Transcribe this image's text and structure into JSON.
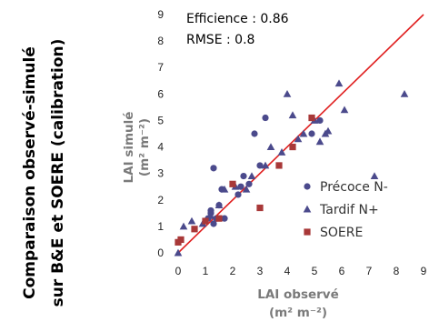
{
  "chart_data": {
    "type": "scatter",
    "side_title_line1": "Comparaison observé-simulé",
    "side_title_line2": "sur B&E et SOERE (calibration)",
    "xlabel_line1": "LAI observé",
    "xlabel_line2": "(m² m⁻²)",
    "ylabel_line1": "LAI simulé",
    "ylabel_line2": "(m² m⁻²)",
    "xlim": [
      0,
      9
    ],
    "ylim": [
      0,
      9
    ],
    "xticks": [
      "0",
      "1",
      "2",
      "3",
      "4",
      "5",
      "6",
      "7",
      "8",
      "9"
    ],
    "yticks": [
      "0",
      "1",
      "2",
      "3",
      "4",
      "5",
      "6",
      "7",
      "8",
      "9"
    ],
    "grid": false,
    "legend_position": "lower-right",
    "stats": [
      "Efficience : 0.86",
      "RMSE : 0.8"
    ],
    "reference_line": {
      "x": [
        0,
        9
      ],
      "y": [
        0,
        9
      ],
      "color": "#e02020"
    },
    "series": [
      {
        "name": "Précoce N-",
        "marker": "circle",
        "color": "#4b4a8c",
        "points": [
          [
            1.1,
            1.3
          ],
          [
            1.2,
            1.5
          ],
          [
            1.3,
            1.1
          ],
          [
            1.3,
            3.2
          ],
          [
            1.4,
            1.3
          ],
          [
            1.5,
            1.8
          ],
          [
            1.6,
            2.4
          ],
          [
            2.2,
            2.2
          ],
          [
            2.4,
            2.9
          ],
          [
            2.6,
            2.6
          ],
          [
            2.8,
            4.5
          ],
          [
            3.0,
            3.3
          ],
          [
            3.2,
            5.1
          ],
          [
            4.9,
            4.5
          ],
          [
            5.2,
            5.0
          ],
          [
            1.7,
            1.3
          ],
          [
            2.3,
            2.5
          ],
          [
            1.2,
            1.6
          ]
        ]
      },
      {
        "name": "Tardif N+",
        "marker": "triangle",
        "color": "#4b4a8c",
        "points": [
          [
            0.0,
            0.0
          ],
          [
            0.2,
            1.0
          ],
          [
            0.5,
            1.2
          ],
          [
            0.9,
            1.1
          ],
          [
            1.2,
            1.4
          ],
          [
            1.5,
            1.8
          ],
          [
            1.7,
            2.4
          ],
          [
            2.1,
            2.5
          ],
          [
            2.5,
            2.4
          ],
          [
            2.7,
            2.9
          ],
          [
            3.2,
            3.3
          ],
          [
            3.4,
            4.0
          ],
          [
            3.8,
            3.8
          ],
          [
            4.0,
            6.0
          ],
          [
            4.2,
            5.2
          ],
          [
            4.4,
            4.3
          ],
          [
            4.6,
            4.5
          ],
          [
            5.0,
            5.0
          ],
          [
            5.2,
            4.2
          ],
          [
            5.4,
            4.5
          ],
          [
            5.5,
            4.6
          ],
          [
            5.9,
            6.4
          ],
          [
            6.1,
            5.4
          ],
          [
            7.2,
            2.9
          ],
          [
            8.3,
            6.0
          ]
        ]
      },
      {
        "name": "SOERE",
        "marker": "square",
        "color": "#a83838",
        "points": [
          [
            0.0,
            0.4
          ],
          [
            0.1,
            0.5
          ],
          [
            0.6,
            0.9
          ],
          [
            1.0,
            1.2
          ],
          [
            1.5,
            1.3
          ],
          [
            2.0,
            2.6
          ],
          [
            3.0,
            1.7
          ],
          [
            3.7,
            3.3
          ],
          [
            4.2,
            4.0
          ],
          [
            4.9,
            5.1
          ]
        ]
      }
    ]
  }
}
